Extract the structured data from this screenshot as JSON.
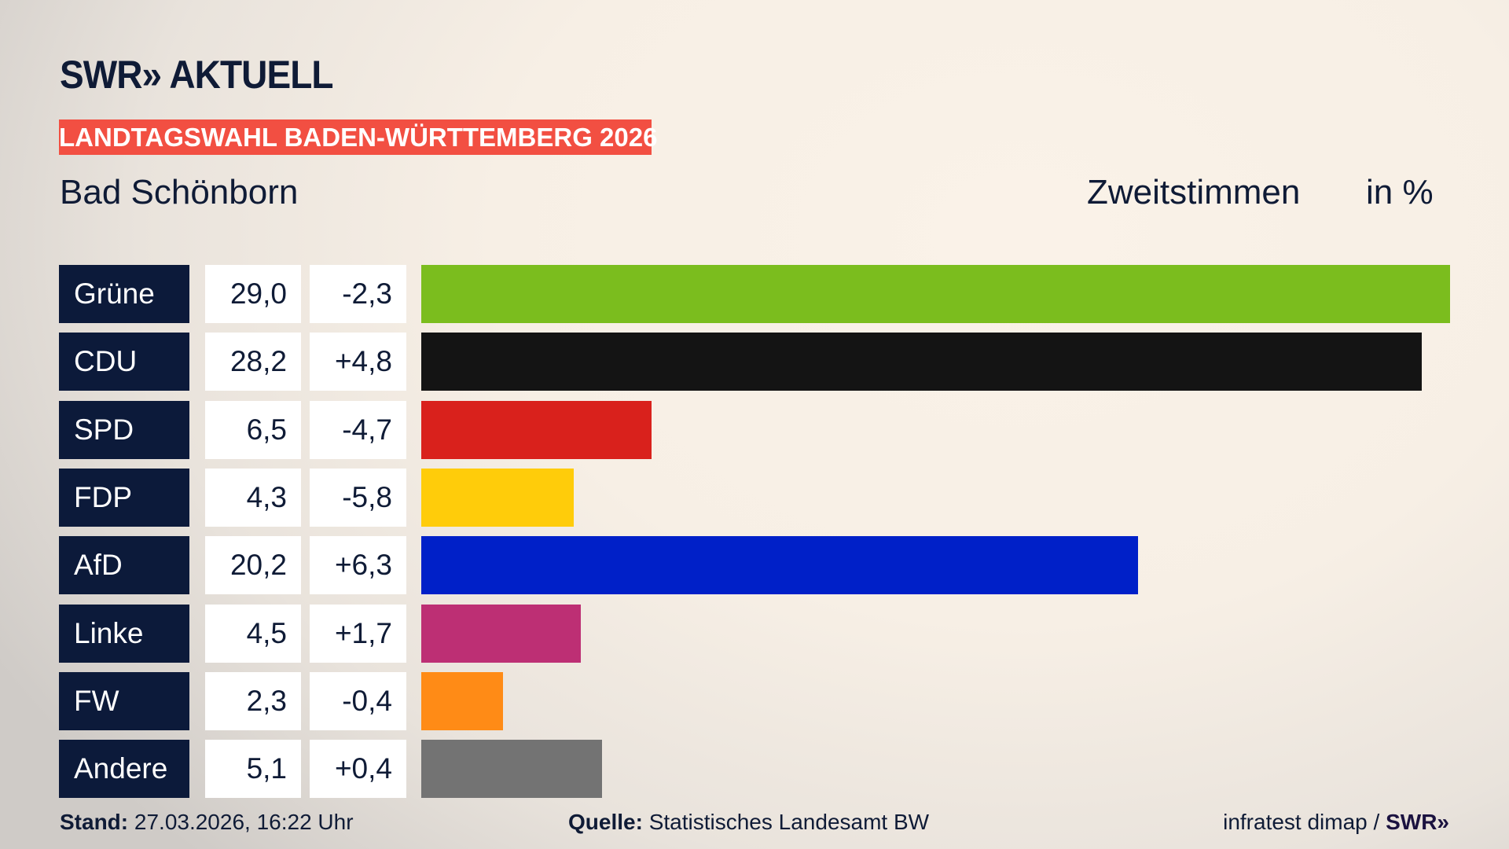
{
  "logo": "SWR» AKTUELL",
  "banner": "LANDTAGSWAHL BADEN-WÜRTTEMBERG 2026",
  "region": "Bad Schönborn",
  "vote_type": "Zweitstimmen",
  "unit": "in %",
  "footer": {
    "stand_label": "Stand:",
    "stand_value": "27.03.2026, 16:22 Uhr",
    "source_label": "Quelle:",
    "source_value": "Statistisches Landesamt BW",
    "credit": "infratest dimap / ",
    "credit_logo": "SWR»"
  },
  "chart_data": {
    "type": "bar",
    "orientation": "horizontal",
    "categories": [
      "Grüne",
      "CDU",
      "SPD",
      "FDP",
      "AfD",
      "Linke",
      "FW",
      "Andere"
    ],
    "values": [
      29.0,
      28.2,
      6.5,
      4.3,
      20.2,
      4.5,
      2.3,
      5.1
    ],
    "value_labels": [
      "29,0",
      "28,2",
      "6,5",
      "4,3",
      "20,2",
      "4,5",
      "2,3",
      "5,1"
    ],
    "diff_labels": [
      "-2,3",
      "+4,8",
      "-4,7",
      "-5,8",
      "+6,3",
      "+1,7",
      "-0,4",
      "+0,4"
    ],
    "colors": [
      "#7bbd1e",
      "#141414",
      "#d9211c",
      "#ffcc0a",
      "#0020c8",
      "#bd2f74",
      "#ff8b16",
      "#737373"
    ],
    "xlim": [
      0,
      29.0
    ]
  }
}
